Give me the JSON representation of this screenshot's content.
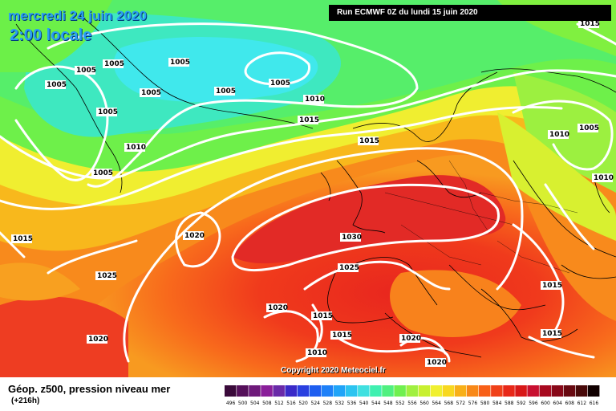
{
  "header": {
    "date": "mercredi 24 juin 2020",
    "time": "2:00 locale",
    "run": "Run ECMWF 0Z du lundi 15 juin 2020"
  },
  "copyright": "Copyright 2020 Meteociel.fr",
  "legend": {
    "title": "Géop. z500, pression niveau mer",
    "subtitle": "(+216h)",
    "levels": [
      "496",
      "500",
      "504",
      "508",
      "512",
      "516",
      "520",
      "524",
      "528",
      "532",
      "536",
      "540",
      "544",
      "548",
      "552",
      "556",
      "560",
      "564",
      "568",
      "572",
      "576",
      "580",
      "584",
      "588",
      "592",
      "596",
      "600",
      "604",
      "608",
      "612",
      "616"
    ],
    "colors": [
      "#3a0a3a",
      "#55105a",
      "#6e1a7a",
      "#8a1f9a",
      "#6a2aa8",
      "#3a2ac8",
      "#2a40e0",
      "#1e5ef0",
      "#1e80f8",
      "#20a4f8",
      "#2cc4f0",
      "#40e0e0",
      "#40f0b0",
      "#50f080",
      "#70f050",
      "#a0f040",
      "#c8f030",
      "#f0f030",
      "#f8d820",
      "#f8b018",
      "#f88818",
      "#f86018",
      "#f04018",
      "#e82818",
      "#d81818",
      "#c81030",
      "#a80a20",
      "#880818",
      "#680810",
      "#480808",
      "#100000"
    ]
  },
  "isobar_labels": [
    {
      "text": "1005"
    },
    {
      "text": "1005"
    },
    {
      "text": "1005"
    },
    {
      "text": "1005"
    },
    {
      "text": "1005"
    },
    {
      "text": "1005"
    },
    {
      "text": "1005"
    },
    {
      "text": "1005"
    },
    {
      "text": "1010"
    },
    {
      "text": "1010"
    },
    {
      "text": "1010"
    },
    {
      "text": "1010"
    },
    {
      "text": "1010"
    },
    {
      "text": "1015"
    },
    {
      "text": "1015"
    },
    {
      "text": "1015"
    },
    {
      "text": "1015"
    },
    {
      "text": "1015"
    },
    {
      "text": "1015"
    },
    {
      "text": "1015"
    },
    {
      "text": "1020"
    },
    {
      "text": "1020"
    },
    {
      "text": "1020"
    },
    {
      "text": "1020"
    },
    {
      "text": "1020"
    },
    {
      "text": "1025"
    },
    {
      "text": "1025"
    },
    {
      "text": "1030"
    },
    {
      "text": "1005"
    },
    {
      "text": "1015"
    },
    {
      "text": "1005"
    }
  ]
}
